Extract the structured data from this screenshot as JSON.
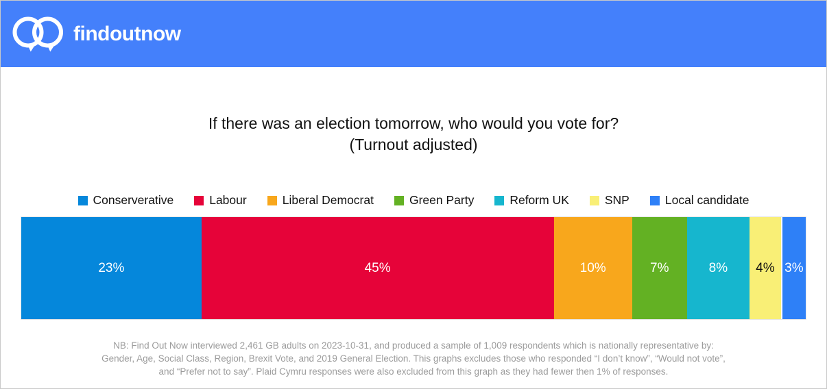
{
  "header": {
    "brand": "findoutnow",
    "background": "#4480fb"
  },
  "title": {
    "line1": "If there was an election tomorrow, who would you vote for?",
    "line2": "(Turnout adjusted)"
  },
  "chart_data": {
    "type": "bar",
    "variant": "horizontal-stacked-100",
    "title": "If there was an election tomorrow, who would you vote for? (Turnout adjusted)",
    "unit": "%",
    "xlim": [
      0,
      100
    ],
    "legend_position": "top",
    "grid": false,
    "series": [
      {
        "name": "Conserverative",
        "value": 23,
        "label": "23%",
        "color": "#0587db",
        "label_color": "#ffffff"
      },
      {
        "name": "Labour",
        "value": 45,
        "label": "45%",
        "color": "#e60339",
        "label_color": "#ffffff"
      },
      {
        "name": "Liberal Democrat",
        "value": 10,
        "label": "10%",
        "color": "#f8a71c",
        "label_color": "#ffffff"
      },
      {
        "name": "Green Party",
        "value": 7,
        "label": "7%",
        "color": "#63b123",
        "label_color": "#ffffff"
      },
      {
        "name": "Reform UK",
        "value": 8,
        "label": "8%",
        "color": "#16b6ce",
        "label_color": "#ffffff"
      },
      {
        "name": "SNP",
        "value": 4,
        "label": "4%",
        "color": "#f9ef76",
        "label_color": "#111111"
      },
      {
        "name": "Local candidate",
        "value": 3,
        "label": "3%",
        "color": "#2e80f7",
        "label_color": "#ffffff",
        "gap_before": true
      }
    ]
  },
  "footnote": {
    "line1": "NB: Find Out Now interviewed 2,461 GB adults on 2023-10-31, and produced a sample of 1,009 respondents which is nationally representative by:",
    "line2": "Gender, Age, Social Class, Region, Brexit Vote, and 2019 General Election. This graphs excludes those who responded “I don’t know”,  “Would not vote”,",
    "line3": "and “Prefer not to say”. Plaid Cymru responses were also excluded from this graph as they had fewer then 1% of responses."
  }
}
